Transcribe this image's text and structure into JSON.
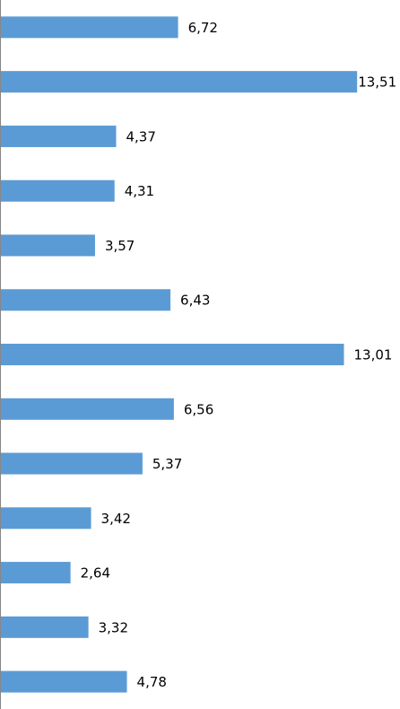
{
  "chart_data": {
    "type": "hbar",
    "categories": [
      null,
      null,
      null,
      null,
      null,
      null,
      null,
      null,
      null,
      null,
      null,
      null,
      null
    ],
    "values": [
      6.72,
      13.51,
      4.37,
      4.31,
      3.57,
      6.43,
      13.01,
      6.56,
      5.37,
      3.42,
      2.64,
      3.32,
      4.78
    ],
    "value_labels": [
      "6,72",
      "13,51",
      "4,37",
      "4,31",
      "3,57",
      "6,43",
      "13,01",
      "6,56",
      "5,37",
      "3,42",
      "2,64",
      "3,32",
      "4,78"
    ],
    "color": "#5b9bd5",
    "xlim": [
      0,
      15
    ]
  }
}
